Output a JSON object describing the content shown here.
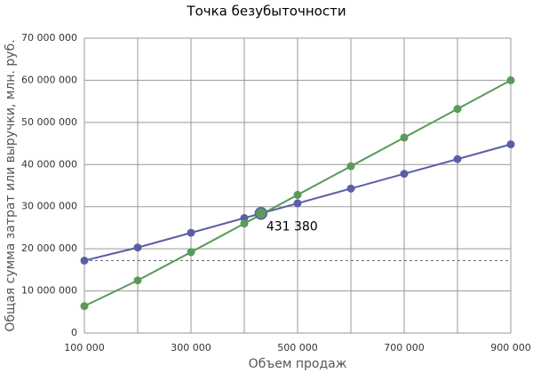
{
  "chart_data": {
    "type": "line",
    "title": "Точка безубыточности",
    "xlabel": "Объем продаж",
    "ylabel": "Общая сумма затрат или выручки, млн. руб.",
    "x": [
      100000,
      200000,
      300000,
      400000,
      500000,
      600000,
      700000,
      800000,
      900000
    ],
    "series": [
      {
        "color": "#5b5ea6",
        "values": [
          17200000,
          20300000,
          23800000,
          27300000,
          30800000,
          34300000,
          37800000,
          41300000,
          44800000
        ]
      },
      {
        "color": "#5a9a5a",
        "values": [
          6400000,
          12500000,
          19200000,
          26000000,
          32800000,
          39600000,
          46400000,
          53200000,
          60000000
        ]
      }
    ],
    "reference_line": 17200000,
    "breakeven": {
      "x": 431380,
      "y": 28400000,
      "label": "431 380"
    },
    "xlim": [
      100000,
      900000
    ],
    "xticks": [
      {
        "value": 100000,
        "label": "100 000"
      },
      {
        "value": 300000,
        "label": "300 000"
      },
      {
        "value": 500000,
        "label": "500 000"
      },
      {
        "value": 700000,
        "label": "700 000"
      },
      {
        "value": 900000,
        "label": "900 000"
      }
    ],
    "xgrid": [
      100000,
      200000,
      300000,
      400000,
      500000,
      600000,
      700000,
      800000,
      900000
    ],
    "ylim": [
      0,
      70000000
    ],
    "yticks": [
      0,
      {
        "value": 10000000,
        "label": "10 000 000"
      },
      {
        "value": 20000000,
        "label": "20 000 000"
      },
      {
        "value": 30000000,
        "label": "30 000 000"
      },
      {
        "value": 40000000,
        "label": "40 000 000"
      },
      {
        "value": 50000000,
        "label": "50 000 000"
      },
      {
        "value": 60000000,
        "label": "60 000 000"
      },
      {
        "value": 70000000,
        "label": "70 000 000"
      }
    ],
    "grid": true
  }
}
